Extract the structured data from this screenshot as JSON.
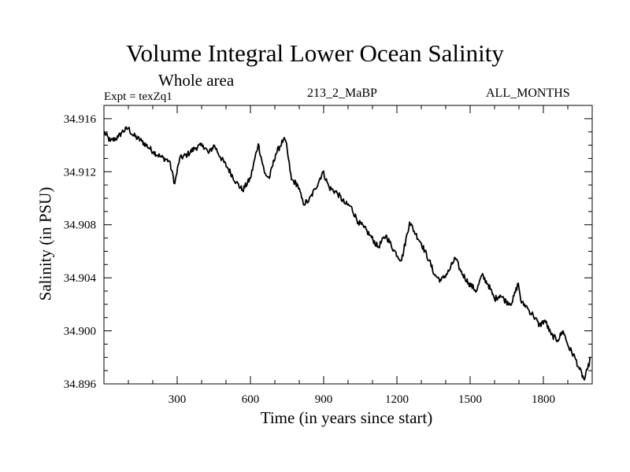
{
  "chart_data": {
    "type": "line",
    "title": "Volume Integral Lower Ocean Salinity",
    "subtitle": "Whole area",
    "annotations": {
      "experiment": "Expt = texZq1",
      "run": "213_2_MaBP",
      "period": "ALL_MONTHS"
    },
    "xlabel": "Time (in years since start)",
    "ylabel": "Salinity (in PSU)",
    "xlim": [
      0,
      2000
    ],
    "ylim": [
      34.896,
      34.917
    ],
    "xticks": [
      300,
      600,
      900,
      1200,
      1500,
      1800
    ],
    "xtick_labels": [
      "300",
      "600",
      "900",
      "1200",
      "1500",
      "1800"
    ],
    "x_minor_step": 100,
    "yticks": [
      34.896,
      34.9,
      34.904,
      34.908,
      34.912,
      34.916
    ],
    "ytick_labels": [
      "34.896",
      "34.900",
      "34.904",
      "34.908",
      "34.912",
      "34.916"
    ],
    "y_minor_step": 0.001,
    "grid": false,
    "legend": "none",
    "series": [
      {
        "name": "Salinity",
        "color": "#000000",
        "x": [
          0,
          26,
          58,
          74,
          100,
          116,
          155,
          203,
          235,
          268,
          290,
          310,
          342,
          374,
          406,
          429,
          452,
          477,
          510,
          542,
          568,
          600,
          632,
          658,
          677,
          703,
          735,
          745,
          768,
          794,
          816,
          839,
          865,
          897,
          923,
          955,
          987,
          1010,
          1042,
          1065,
          1090,
          1123,
          1155,
          1187,
          1219,
          1252,
          1277,
          1300,
          1332,
          1355,
          1381,
          1413,
          1439,
          1461,
          1494,
          1526,
          1548,
          1574,
          1600,
          1623,
          1648,
          1671,
          1697,
          1710,
          1729,
          1742,
          1758,
          1784,
          1806,
          1832,
          1858,
          1881,
          1903,
          1929,
          1948,
          1968,
          1981,
          1994
        ],
        "y": [
          34.915,
          34.9143,
          34.9146,
          34.915,
          34.9153,
          34.9148,
          34.9143,
          34.9135,
          34.9131,
          34.9128,
          34.9111,
          34.913,
          34.9133,
          34.9138,
          34.914,
          34.9134,
          34.914,
          34.9131,
          34.9122,
          34.9112,
          34.9106,
          34.9115,
          34.9141,
          34.9119,
          34.9115,
          34.9133,
          34.9144,
          34.9143,
          34.9114,
          34.911,
          34.9096,
          34.9098,
          34.9107,
          34.912,
          34.9108,
          34.9104,
          34.9096,
          34.9094,
          34.9082,
          34.9078,
          34.9072,
          34.9063,
          34.9072,
          34.9061,
          34.9053,
          34.9082,
          34.9073,
          34.9066,
          34.9053,
          34.9042,
          34.9038,
          34.9045,
          34.9055,
          34.9045,
          34.9036,
          34.903,
          34.9042,
          34.9035,
          34.9024,
          34.9027,
          34.9022,
          34.9021,
          34.9036,
          34.9021,
          34.9019,
          34.9015,
          34.9012,
          34.9004,
          34.9008,
          34.8997,
          34.8993,
          34.9,
          34.8988,
          34.898,
          34.8971,
          34.8963,
          34.8971,
          34.898
        ]
      }
    ]
  }
}
